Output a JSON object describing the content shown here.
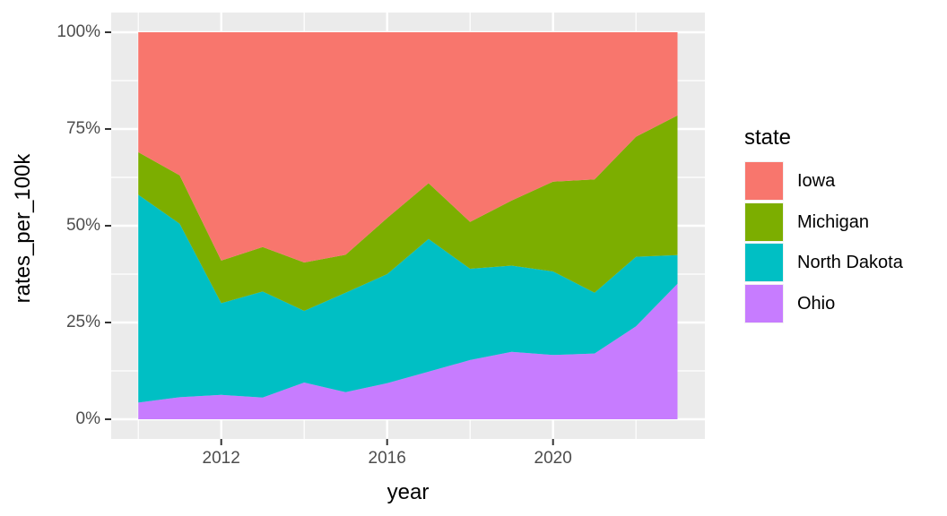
{
  "figure": {
    "background": "#FFFFFF",
    "panel_background": "#EBEBEB",
    "gridline_color": "#FFFFFF",
    "tick_mark_color": "#333333",
    "axis_text_color": "#4D4D4D",
    "title_text_color": "#000000"
  },
  "axes": {
    "x_title": "year",
    "y_title": "rates_per_100k",
    "x_tick_labels": [
      "2012",
      "2016",
      "2020"
    ],
    "y_tick_labels": [
      "0%",
      "25%",
      "50%",
      "75%",
      "100%"
    ]
  },
  "legend": {
    "title": "state",
    "entries": [
      {
        "label": "Iowa",
        "color": "#F8766D"
      },
      {
        "label": "Michigan",
        "color": "#7CAE00"
      },
      {
        "label": "North Dakota",
        "color": "#00BFC4"
      },
      {
        "label": "Ohio",
        "color": "#C77CFF"
      }
    ]
  },
  "chart_data": {
    "type": "area",
    "stacked": true,
    "normalized": "percent_fill",
    "title": "",
    "xlabel": "year",
    "ylabel": "rates_per_100k",
    "x": [
      2010,
      2011,
      2012,
      2013,
      2014,
      2015,
      2016,
      2017,
      2018,
      2019,
      2020,
      2021,
      2022,
      2023
    ],
    "x_tick_values": [
      2012,
      2016,
      2020
    ],
    "x_minor_tick_values": [
      2010,
      2014,
      2018,
      2022
    ],
    "y_tick_values": [
      0,
      25,
      50,
      75,
      100
    ],
    "y_minor_tick_values": [
      12.5,
      37.5,
      62.5,
      87.5
    ],
    "xlim": [
      2009.35,
      2023.65
    ],
    "ylim": [
      0,
      100
    ],
    "legend_position": "right",
    "grid": true,
    "stack_order_bottom_to_top": [
      "Ohio",
      "North Dakota",
      "Michigan",
      "Iowa"
    ],
    "series": [
      {
        "name": "Iowa",
        "color": "#F8766D",
        "values": [
          31.0,
          37.0,
          59.0,
          55.5,
          59.5,
          57.5,
          48.0,
          39.0,
          49.0,
          43.5,
          38.6,
          38.0,
          27.0,
          21.5
        ]
      },
      {
        "name": "Michigan",
        "color": "#7CAE00",
        "values": [
          11.0,
          12.5,
          11.0,
          11.5,
          12.5,
          9.8,
          14.5,
          14.4,
          12.1,
          16.8,
          23.2,
          29.3,
          31.0,
          36.1
        ]
      },
      {
        "name": "North Dakota",
        "color": "#00BFC4",
        "values": [
          53.7,
          44.8,
          23.7,
          27.4,
          18.5,
          25.7,
          28.2,
          34.3,
          23.6,
          22.3,
          21.6,
          15.7,
          18.0,
          7.4
        ]
      },
      {
        "name": "Ohio",
        "color": "#C77CFF",
        "values": [
          4.3,
          5.7,
          6.3,
          5.6,
          9.5,
          7.0,
          9.3,
          12.3,
          15.3,
          17.4,
          16.6,
          17.0,
          24.0,
          35.0
        ]
      }
    ]
  }
}
